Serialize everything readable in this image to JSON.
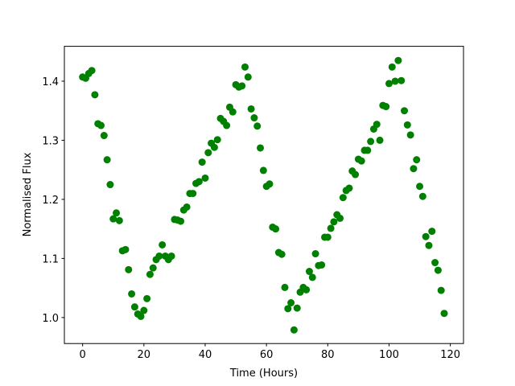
{
  "chart_data": {
    "type": "scatter",
    "xlabel": "Time (Hours)",
    "ylabel": "Normalised Flux",
    "color": "#008000",
    "x": [
      0,
      1,
      2,
      3,
      4,
      5,
      6,
      7,
      8,
      9,
      10,
      11,
      12,
      13,
      14,
      15,
      16,
      17,
      18,
      19,
      20,
      21,
      22,
      23,
      24,
      25,
      26,
      27,
      28,
      29,
      30,
      31,
      32,
      33,
      34,
      35,
      36,
      37,
      38,
      39,
      40,
      41,
      42,
      43,
      44,
      45,
      46,
      47,
      48,
      49,
      50,
      51,
      52,
      53,
      54,
      55,
      56,
      57,
      58,
      59,
      60,
      61,
      62,
      63,
      64,
      65,
      66,
      67,
      68,
      69,
      70,
      71,
      72,
      73,
      74,
      75,
      76,
      77,
      78,
      79,
      80,
      81,
      82,
      83,
      84,
      85,
      86,
      87,
      88,
      89,
      90,
      91,
      92,
      93,
      94,
      95,
      96,
      97,
      98,
      99,
      100,
      101,
      102,
      103,
      104,
      105,
      106,
      107,
      108,
      109,
      110,
      111,
      112,
      113,
      114,
      115,
      116,
      117,
      118
    ],
    "values": [
      1.407,
      1.405,
      1.413,
      1.418,
      1.377,
      1.328,
      1.325,
      1.308,
      1.267,
      1.225,
      1.167,
      1.177,
      1.164,
      1.113,
      1.115,
      1.081,
      1.04,
      1.018,
      1.006,
      1.002,
      1.012,
      1.032,
      1.073,
      1.084,
      1.098,
      1.104,
      1.123,
      1.104,
      1.098,
      1.104,
      1.166,
      1.165,
      1.163,
      1.182,
      1.187,
      1.21,
      1.21,
      1.227,
      1.23,
      1.263,
      1.236,
      1.279,
      1.295,
      1.288,
      1.301,
      1.337,
      1.332,
      1.325,
      1.356,
      1.348,
      1.394,
      1.39,
      1.392,
      1.424,
      1.407,
      1.353,
      1.338,
      1.324,
      1.287,
      1.249,
      1.222,
      1.226,
      1.153,
      1.15,
      1.11,
      1.107,
      1.051,
      1.015,
      1.025,
      0.979,
      1.016,
      1.043,
      1.051,
      1.047,
      1.078,
      1.068,
      1.108,
      1.088,
      1.089,
      1.136,
      1.136,
      1.151,
      1.162,
      1.174,
      1.168,
      1.203,
      1.215,
      1.219,
      1.248,
      1.242,
      1.268,
      1.265,
      1.283,
      1.283,
      1.298,
      1.319,
      1.327,
      1.3,
      1.359,
      1.357,
      1.396,
      1.424,
      1.4,
      1.435,
      1.401,
      1.35,
      1.326,
      1.309,
      1.252,
      1.267,
      1.222,
      1.205,
      1.137,
      1.122,
      1.146,
      1.093,
      1.08,
      1.046,
      1.007
    ],
    "xlim": [
      -5.95,
      124.3
    ],
    "ylim": [
      0.956,
      1.459
    ],
    "xticks": [
      0,
      20,
      40,
      60,
      80,
      100,
      120
    ],
    "yticks": [
      {
        "value": 1,
        "label": "1.0"
      },
      1.1,
      1.2,
      1.3,
      1.4
    ]
  }
}
